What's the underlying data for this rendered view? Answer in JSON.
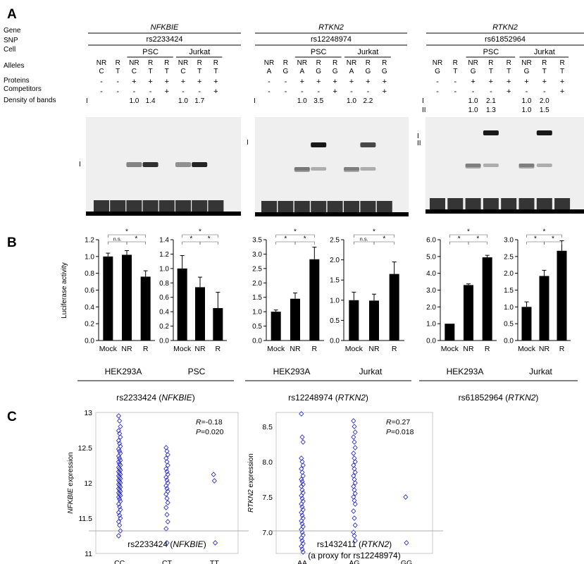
{
  "panel_labels": {
    "a": "A",
    "b": "B",
    "c": "C"
  },
  "emsa": {
    "row_labels": {
      "gene": "Gene",
      "snp": "SNP",
      "cell": "Cell",
      "alleles": "Alleles",
      "proteins": "Proteins",
      "competitors": "Competitors",
      "density": "Density of bands"
    },
    "blocks": [
      {
        "gene": "NFKBIE",
        "snp": "rs2233424",
        "cells": [
          "PSC",
          "Jurkat"
        ],
        "lanes": [
          {
            "type": "NR",
            "allele": "C",
            "protein": "-",
            "competitor": "-"
          },
          {
            "type": "R",
            "allele": "T",
            "protein": "-",
            "competitor": "-"
          },
          {
            "type": "NR",
            "allele": "C",
            "protein": "+",
            "competitor": "-"
          },
          {
            "type": "R",
            "allele": "T",
            "protein": "+",
            "competitor": "-"
          },
          {
            "type": "R",
            "allele": "T",
            "protein": "+",
            "competitor": "+"
          },
          {
            "type": "NR",
            "allele": "C",
            "protein": "+",
            "competitor": "-"
          },
          {
            "type": "R",
            "allele": "T",
            "protein": "+",
            "competitor": "-"
          },
          {
            "type": "R",
            "allele": "T",
            "protein": "+",
            "competitor": "+"
          }
        ],
        "density_rows": [
          {
            "roman": "I",
            "values": [
              "",
              "",
              "1.0",
              "1.4",
              "",
              "1.0",
              "1.7",
              ""
            ]
          }
        ],
        "band_labels": [
          "I"
        ],
        "bands": [
          {
            "lane": 2,
            "intensity": 0.45
          },
          {
            "lane": 3,
            "intensity": 0.8
          },
          {
            "lane": 5,
            "intensity": 0.4
          },
          {
            "lane": 6,
            "intensity": 0.85
          }
        ]
      },
      {
        "gene": "RTKN2",
        "snp": "rs12248974",
        "cells": [
          "PSC",
          "Jurkat"
        ],
        "lanes": [
          {
            "type": "NR",
            "allele": "A",
            "protein": "-",
            "competitor": "-"
          },
          {
            "type": "R",
            "allele": "G",
            "protein": "-",
            "competitor": "-"
          },
          {
            "type": "NR",
            "allele": "A",
            "protein": "+",
            "competitor": "-"
          },
          {
            "type": "R",
            "allele": "G",
            "protein": "+",
            "competitor": "-"
          },
          {
            "type": "R",
            "allele": "G",
            "protein": "+",
            "competitor": "+"
          },
          {
            "type": "NR",
            "allele": "A",
            "protein": "+",
            "competitor": "-"
          },
          {
            "type": "R",
            "allele": "G",
            "protein": "+",
            "competitor": "-"
          },
          {
            "type": "R",
            "allele": "G",
            "protein": "+",
            "competitor": "+"
          }
        ],
        "density_rows": [
          {
            "roman": "I",
            "values": [
              "",
              "",
              "1.0",
              "3.5",
              "",
              "1.0",
              "2.2",
              ""
            ]
          }
        ],
        "band_labels": [
          "I"
        ],
        "bands": [
          {
            "lane": 2,
            "intensity": 0.35
          },
          {
            "lane": 3,
            "intensity": 0.9
          },
          {
            "lane": 5,
            "intensity": 0.3
          },
          {
            "lane": 6,
            "intensity": 0.7
          }
        ]
      },
      {
        "gene": "RTKN2",
        "snp": "rs61852964",
        "cells": [
          "PSC",
          "Jurkat"
        ],
        "lanes": [
          {
            "type": "NR",
            "allele": "G",
            "protein": "-",
            "competitor": "-"
          },
          {
            "type": "R",
            "allele": "T",
            "protein": "-",
            "competitor": "-"
          },
          {
            "type": "NR",
            "allele": "G",
            "protein": "+",
            "competitor": "-"
          },
          {
            "type": "R",
            "allele": "T",
            "protein": "+",
            "competitor": "-"
          },
          {
            "type": "R",
            "allele": "T",
            "protein": "+",
            "competitor": "+"
          },
          {
            "type": "NR",
            "allele": "G",
            "protein": "+",
            "competitor": "-"
          },
          {
            "type": "R",
            "allele": "T",
            "protein": "+",
            "competitor": "-"
          },
          {
            "type": "R",
            "allele": "T",
            "protein": "+",
            "competitor": "+"
          }
        ],
        "density_rows": [
          {
            "roman": "I",
            "values": [
              "",
              "",
              "1.0",
              "2.1",
              "",
              "1.0",
              "2.0",
              ""
            ]
          },
          {
            "roman": "II",
            "values": [
              "",
              "",
              "1.0",
              "1.3",
              "",
              "1.0",
              "1.5",
              ""
            ]
          }
        ],
        "band_labels": [
          "I",
          "II"
        ],
        "bands": [
          {
            "lane": 2,
            "intensity": 0.3
          },
          {
            "lane": 3,
            "intensity": 0.9
          },
          {
            "lane": 5,
            "intensity": 0.3
          },
          {
            "lane": 6,
            "intensity": 0.9
          }
        ]
      }
    ]
  },
  "luciferase": {
    "ylabel": "Luciferase activity",
    "categories": [
      "Mock",
      "NR",
      "R"
    ],
    "groups": [
      {
        "snp_label": "rs2233424 (",
        "gene": "NFKBIE",
        "close": ")"
      },
      {
        "snp_label": "rs12248974 (",
        "gene": "RTKN2",
        "close": ")"
      },
      {
        "snp_label": "rs61852964 (",
        "gene": "RTKN2",
        "close": ")"
      }
    ]
  },
  "chart_data": [
    {
      "type": "bar",
      "group": 0,
      "xlabel": "HEK293A",
      "categories": [
        "Mock",
        "NR",
        "R"
      ],
      "values": [
        1.0,
        1.02,
        0.76
      ],
      "errors": [
        0.04,
        0.05,
        0.07
      ],
      "ylim": [
        0,
        1.2
      ],
      "yticks": [
        "0.0",
        "0.2",
        "0.4",
        "0.6",
        "0.8",
        "1.0",
        "1.2"
      ],
      "significance": [
        {
          "from": 0,
          "to": 1,
          "label": "n.s."
        },
        {
          "from": 1,
          "to": 2,
          "label": "*"
        },
        {
          "from": 0,
          "to": 2,
          "label": "*"
        }
      ]
    },
    {
      "type": "bar",
      "group": 0,
      "xlabel": "PSC",
      "categories": [
        "Mock",
        "NR",
        "R"
      ],
      "values": [
        1.0,
        0.74,
        0.45
      ],
      "errors": [
        0.18,
        0.14,
        0.22
      ],
      "ylim": [
        0,
        1.4
      ],
      "yticks": [
        "0.0",
        "0.2",
        "0.4",
        "0.6",
        "0.8",
        "1.0",
        "1.2",
        "1.4"
      ],
      "significance": [
        {
          "from": 0,
          "to": 1,
          "label": "*"
        },
        {
          "from": 1,
          "to": 2,
          "label": "*"
        },
        {
          "from": 0,
          "to": 2,
          "label": "*"
        }
      ]
    },
    {
      "type": "bar",
      "group": 1,
      "xlabel": "HEK293A",
      "categories": [
        "Mock",
        "NR",
        "R"
      ],
      "values": [
        1.0,
        1.45,
        2.82
      ],
      "errors": [
        0.06,
        0.2,
        0.42
      ],
      "ylim": [
        0,
        3.5
      ],
      "yticks": [
        "0.0",
        "0.5",
        "1.0",
        "1.5",
        "2.0",
        "2.5",
        "3.0",
        "3.5"
      ],
      "significance": [
        {
          "from": 0,
          "to": 1,
          "label": "*"
        },
        {
          "from": 1,
          "to": 2,
          "label": "*"
        },
        {
          "from": 0,
          "to": 2,
          "label": "*"
        }
      ]
    },
    {
      "type": "bar",
      "group": 1,
      "xlabel": "Jurkat",
      "categories": [
        "Mock",
        "NR",
        "R"
      ],
      "values": [
        1.0,
        0.99,
        1.65
      ],
      "errors": [
        0.2,
        0.16,
        0.3
      ],
      "ylim": [
        0,
        2.5
      ],
      "yticks": [
        "0.0",
        "0.5",
        "1.0",
        "1.5",
        "2.0",
        "2.5"
      ],
      "significance": [
        {
          "from": 0,
          "to": 1,
          "label": "n.s."
        },
        {
          "from": 1,
          "to": 2,
          "label": "*"
        },
        {
          "from": 0,
          "to": 2,
          "label": "*"
        }
      ]
    },
    {
      "type": "bar",
      "group": 2,
      "xlabel": "HEK293A",
      "categories": [
        "Mock",
        "NR",
        "R"
      ],
      "values": [
        1.0,
        3.3,
        4.95
      ],
      "errors": [
        0.0,
        0.07,
        0.12
      ],
      "ylim": [
        0,
        6.0
      ],
      "yticks": [
        "0.0",
        "1.0",
        "2.0",
        "3.0",
        "4.0",
        "5.0",
        "6.0"
      ],
      "significance": [
        {
          "from": 0,
          "to": 1,
          "label": "*"
        },
        {
          "from": 1,
          "to": 2,
          "label": "*"
        },
        {
          "from": 0,
          "to": 2,
          "label": "*"
        }
      ]
    },
    {
      "type": "bar",
      "group": 2,
      "xlabel": "Jurkat",
      "categories": [
        "Mock",
        "NR",
        "R"
      ],
      "values": [
        1.0,
        1.92,
        2.67
      ],
      "errors": [
        0.15,
        0.17,
        0.3
      ],
      "ylim": [
        0,
        3.0
      ],
      "yticks": [
        "0.0",
        "0.5",
        "1.0",
        "1.5",
        "2.0",
        "2.5",
        "3.0"
      ],
      "significance": [
        {
          "from": 0,
          "to": 1,
          "label": "*"
        },
        {
          "from": 1,
          "to": 2,
          "label": "*"
        },
        {
          "from": 0,
          "to": 2,
          "label": "*"
        }
      ]
    },
    {
      "type": "scatter",
      "ylabel": "expression",
      "ylabel_gene": "NFKBIE",
      "xlabel": "rs2233424 (",
      "xlabel_gene": "NFKBIE",
      "xlabel_close": ")",
      "categories": [
        "CC",
        "CT",
        "TT"
      ],
      "ylim": [
        11,
        13
      ],
      "yticks": [
        "11",
        "11.5",
        "12",
        "12.5",
        "13"
      ],
      "stat_R": "=-0.18",
      "stat_P": "=0.020",
      "marker_color": "#3030d0",
      "groups": [
        {
          "category": "CC",
          "values": [
            12.95,
            12.88,
            12.8,
            12.74,
            12.7,
            12.65,
            12.6,
            12.56,
            12.52,
            12.48,
            12.45,
            12.42,
            12.38,
            12.35,
            12.32,
            12.3,
            12.27,
            12.25,
            12.22,
            12.2,
            12.18,
            12.16,
            12.14,
            12.12,
            12.1,
            12.08,
            12.06,
            12.04,
            12.02,
            12.0,
            11.98,
            11.96,
            11.94,
            11.92,
            11.9,
            11.88,
            11.86,
            11.84,
            11.82,
            11.8,
            11.77,
            11.74,
            11.7,
            11.66,
            11.62,
            11.58,
            11.54,
            11.5,
            11.45,
            11.4,
            11.32,
            11.25
          ]
        },
        {
          "category": "CT",
          "values": [
            12.5,
            12.45,
            12.4,
            12.35,
            12.3,
            12.25,
            12.2,
            12.16,
            12.12,
            12.08,
            12.04,
            12.0,
            11.96,
            11.92,
            11.88,
            11.84,
            11.78,
            11.72,
            11.65,
            11.55,
            11.45,
            11.35,
            11.15
          ]
        },
        {
          "category": "TT",
          "values": [
            12.12,
            12.03,
            11.15
          ]
        }
      ]
    },
    {
      "type": "scatter",
      "ylabel": "expression",
      "ylabel_gene": "RTKN2",
      "xlabel": "rs1432411 (",
      "xlabel_gene": "RTKN2",
      "xlabel_close": ")",
      "xlabel_line2": "(a proxy for rs12248974)",
      "categories": [
        "AA",
        "AG",
        "GG"
      ],
      "ylim": [
        6.7,
        8.7
      ],
      "yticks": [
        "7.0",
        "7.5",
        "8.0",
        "8.5"
      ],
      "stat_R": "=0.27",
      "stat_P": "=0.018",
      "marker_color": "#3030d0",
      "groups": [
        {
          "category": "AA",
          "values": [
            8.68,
            8.35,
            8.28,
            8.05,
            8.0,
            7.95,
            7.9,
            7.85,
            7.8,
            7.75,
            7.72,
            7.68,
            7.65,
            7.6,
            7.56,
            7.52,
            7.48,
            7.44,
            7.4,
            7.36,
            7.32,
            7.28,
            7.24,
            7.2,
            7.16,
            7.12,
            7.08,
            7.04,
            7.0,
            6.96,
            6.92,
            6.88,
            6.84,
            6.8,
            6.76,
            6.72
          ]
        },
        {
          "category": "AG",
          "values": [
            8.58,
            8.5,
            8.42,
            8.35,
            8.28,
            8.2,
            8.12,
            8.05,
            8.0,
            7.95,
            7.9,
            7.85,
            7.8,
            7.75,
            7.7,
            7.65,
            7.6,
            7.55,
            7.5,
            7.45,
            7.4,
            7.3,
            7.2,
            7.1,
            7.0,
            6.95,
            6.88
          ]
        },
        {
          "category": "GG",
          "values": [
            7.5,
            6.85
          ]
        }
      ]
    }
  ]
}
